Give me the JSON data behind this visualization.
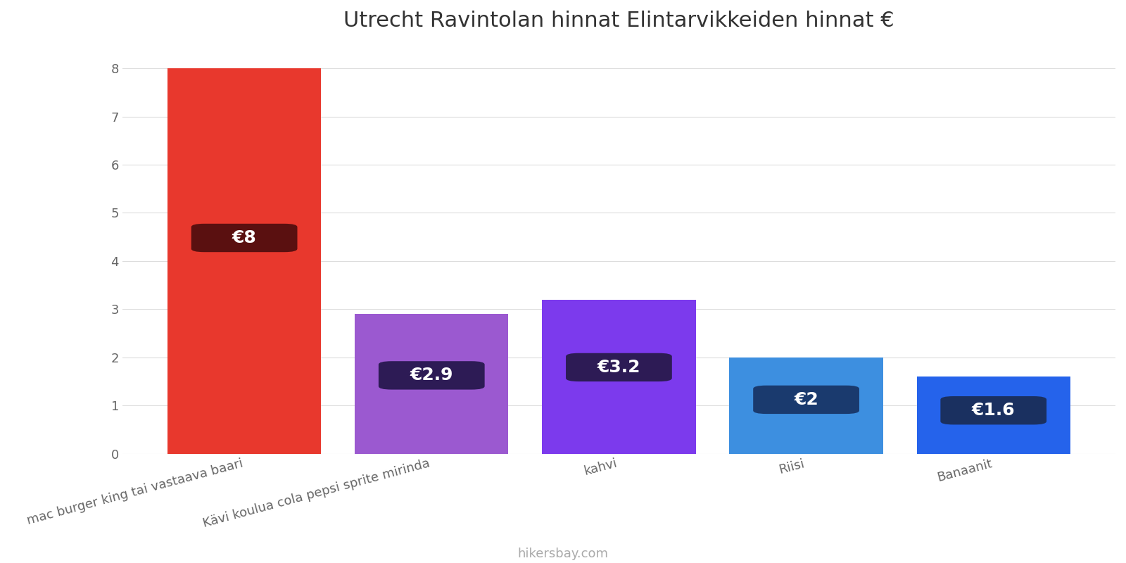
{
  "title": "Utrecht Ravintolan hinnat Elintarvikkeiden hinnat €",
  "categories": [
    "mac burger king tai vastaava baari",
    "Kävi koulua cola pepsi sprite mirinda",
    "kahvi",
    "Riisi",
    "Banaanit"
  ],
  "values": [
    8,
    2.9,
    3.2,
    2,
    1.6
  ],
  "bar_colors": [
    "#e8382d",
    "#9b59d0",
    "#7c3aed",
    "#3d8fe0",
    "#2563eb"
  ],
  "label_bg_colors": [
    "#5a1010",
    "#2d1b55",
    "#2d1b55",
    "#1a3a6e",
    "#1a3060"
  ],
  "labels": [
    "€8",
    "€2.9",
    "€3.2",
    "€2",
    "€1.6"
  ],
  "ylim": [
    0,
    8.5
  ],
  "yticks": [
    0,
    1,
    2,
    3,
    4,
    5,
    6,
    7,
    8
  ],
  "footer_text": "hikersbay.com",
  "background_color": "#ffffff",
  "grid_color": "#dddddd",
  "title_fontsize": 22,
  "label_fontsize": 18,
  "tick_fontsize": 13,
  "footer_fontsize": 13,
  "bar_width": 0.82
}
